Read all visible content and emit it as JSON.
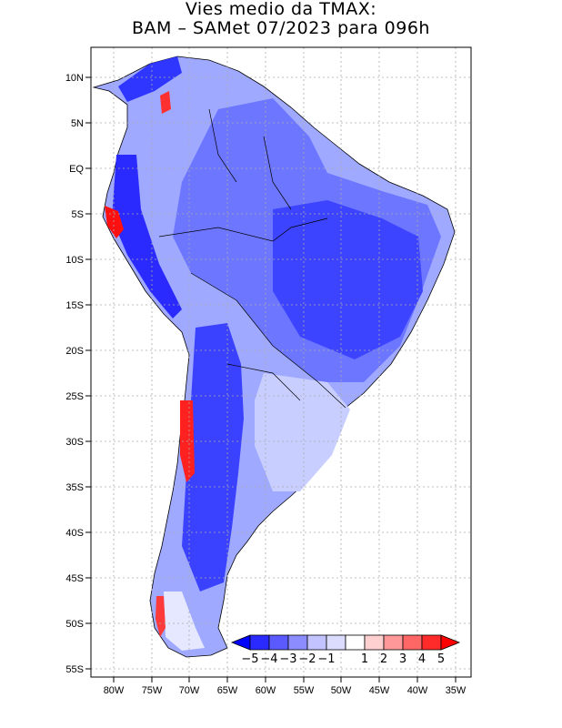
{
  "title": {
    "line1": "Vies medio da TMAX:",
    "line2": "BAM – SAMet 07/2023  para 096h"
  },
  "axes": {
    "lon_labels": [
      "80W",
      "75W",
      "70W",
      "65W",
      "60W",
      "55W",
      "50W",
      "45W",
      "40W",
      "35W"
    ],
    "lat_labels": [
      "10N",
      "5N",
      "EQ",
      "5S",
      "10S",
      "15S",
      "20S",
      "25S",
      "30S",
      "35S",
      "40S",
      "45S",
      "50S",
      "55S"
    ]
  },
  "colorbar": {
    "labels": [
      "−5",
      "−4",
      "−3",
      "−2",
      "−1",
      "1",
      "2",
      "3",
      "4",
      "5"
    ],
    "colors": [
      "#0000ff",
      "#2a2aff",
      "#5a5aff",
      "#8c8cff",
      "#c3c3ff",
      "#dcdcff",
      "#ffffff",
      "#ffd0d0",
      "#ff9999",
      "#ff6666",
      "#ff2a2a",
      "#ff0000"
    ]
  }
}
